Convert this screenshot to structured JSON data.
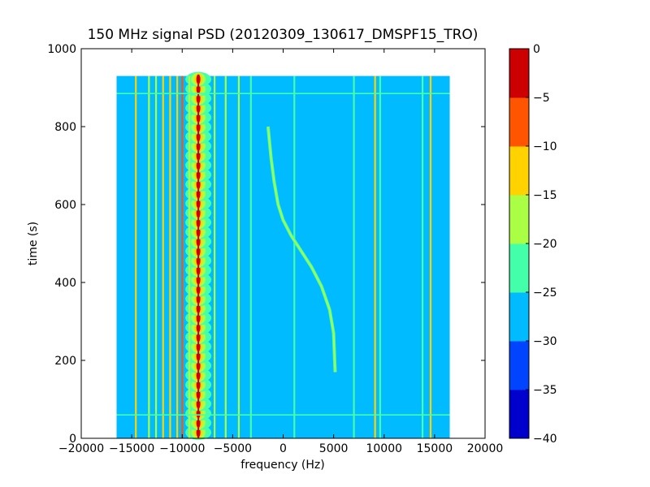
{
  "chart_data": {
    "type": "heatmap",
    "title": "150 MHz signal PSD (20120309_130617_DMSPF15_TRO)",
    "xlabel": "frequency (Hz)",
    "ylabel": "time (s)",
    "xlim": [
      -20000,
      20000
    ],
    "ylim": [
      0,
      1000
    ],
    "x_ticks": [
      -20000,
      -15000,
      -10000,
      -5000,
      0,
      5000,
      10000,
      15000,
      20000
    ],
    "x_tick_labels": [
      "−20000",
      "−15000",
      "−10000",
      "−5000",
      "0",
      "5000",
      "10000",
      "15000",
      "20000"
    ],
    "y_ticks": [
      0,
      200,
      400,
      600,
      800,
      1000
    ],
    "y_tick_labels": [
      "0",
      "200",
      "400",
      "600",
      "800",
      "1000"
    ],
    "data_extent": {
      "x": [
        -16500,
        16500
      ],
      "y": [
        0,
        930
      ]
    },
    "grid": false,
    "colorbar": {
      "levels": [
        -40,
        -35,
        -30,
        -25,
        -20,
        -15,
        -10,
        -5,
        0
      ],
      "tick_labels": [
        "−40",
        "−35",
        "−30",
        "−25",
        "−20",
        "−15",
        "−10",
        "−5",
        "0"
      ],
      "colors": [
        "#0000cc",
        "#0044ff",
        "#00bbff",
        "#44ffaa",
        "#aaff44",
        "#ffd200",
        "#ff5500",
        "#cc0000"
      ],
      "placement": "right"
    },
    "background_level": -27.5,
    "features": [
      {
        "kind": "strong-carrier",
        "freq_hz": -8400,
        "level": -2,
        "note": "periodic bulges along time"
      },
      {
        "kind": "line",
        "freq_hz": -10000,
        "level": -6
      },
      {
        "kind": "line",
        "freq_hz": -10500,
        "level": -12
      },
      {
        "kind": "line",
        "freq_hz": -11200,
        "level": -15
      },
      {
        "kind": "line",
        "freq_hz": -11900,
        "level": -15
      },
      {
        "kind": "line",
        "freq_hz": -12600,
        "level": -18
      },
      {
        "kind": "line",
        "freq_hz": -13300,
        "level": -18
      },
      {
        "kind": "line",
        "freq_hz": -14600,
        "level": -12
      },
      {
        "kind": "line",
        "freq_hz": -9300,
        "level": -18
      },
      {
        "kind": "line",
        "freq_hz": -6800,
        "level": -18
      },
      {
        "kind": "line",
        "freq_hz": -5700,
        "level": -18
      },
      {
        "kind": "line",
        "freq_hz": -4400,
        "level": -18
      },
      {
        "kind": "line",
        "freq_hz": -3200,
        "level": -22
      },
      {
        "kind": "line",
        "freq_hz": 1100,
        "level": -22
      },
      {
        "kind": "line",
        "freq_hz": 7000,
        "level": -22
      },
      {
        "kind": "line",
        "freq_hz": 9100,
        "level": -12
      },
      {
        "kind": "line",
        "freq_hz": 9600,
        "level": -22
      },
      {
        "kind": "line",
        "freq_hz": 14600,
        "level": -12
      },
      {
        "kind": "line",
        "freq_hz": 13800,
        "level": -22
      },
      {
        "kind": "doppler-curve",
        "level": -18,
        "points": [
          [
            -1500,
            800
          ],
          [
            -1200,
            720
          ],
          [
            -900,
            660
          ],
          [
            -500,
            600
          ],
          [
            0,
            560
          ],
          [
            800,
            520
          ],
          [
            1800,
            480
          ],
          [
            2800,
            440
          ],
          [
            3800,
            390
          ],
          [
            4600,
            330
          ],
          [
            5000,
            270
          ],
          [
            5100,
            200
          ],
          [
            5150,
            170
          ]
        ]
      },
      {
        "kind": "time-line",
        "time_s": 885,
        "level": -22
      },
      {
        "kind": "time-line",
        "time_s": 60,
        "level": -22
      }
    ]
  }
}
